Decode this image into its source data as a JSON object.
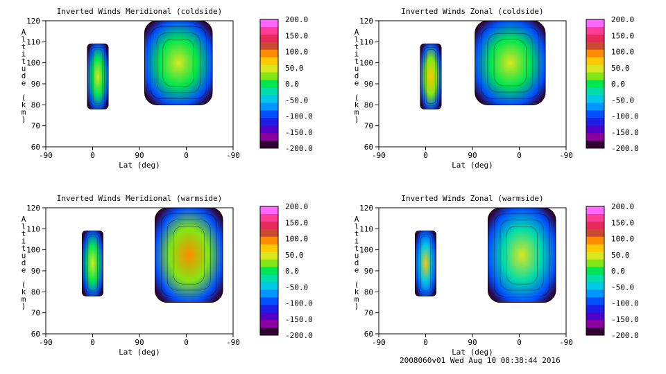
{
  "footer": "2008060v01 Wed Aug 10 08:38:44 2016",
  "colorbar": {
    "ticks": [
      "200.0",
      "150.0",
      "100.0",
      "50.0",
      "0.0",
      "-50.0",
      "-100.0",
      "-150.0",
      "-200.0"
    ],
    "colors": [
      "#ff66ff",
      "#ff3c96",
      "#e6285a",
      "#c84b32",
      "#ff8c00",
      "#ffc800",
      "#dce61e",
      "#82e614",
      "#00e650",
      "#00dcaa",
      "#00c8e6",
      "#0096ff",
      "#0050ff",
      "#1e1ee6",
      "#5000c8",
      "#8c00a0",
      "#320032"
    ]
  },
  "chart_data": [
    {
      "type": "heatmap",
      "panel": "top-left",
      "title": "Inverted Winds Meridional (coldside)",
      "xlabel": "Lat (deg)",
      "ylabel": "Altitude (km)",
      "xticks": [
        "-90",
        "0",
        "90",
        "0",
        "-90"
      ],
      "yticks": [
        "60",
        "70",
        "80",
        "90",
        "100",
        "110",
        "120"
      ],
      "ylim": [
        60,
        120
      ],
      "colorbar_range": [
        -200,
        200
      ],
      "regions": [
        {
          "lat_from": -10,
          "lat_to": 30,
          "alt_from": 78,
          "alt_to": 109,
          "dominant_value": 0,
          "min": -200,
          "max": 50
        },
        {
          "lat_from": 100,
          "lat_to": 230,
          "alt_from": 80,
          "alt_to": 120,
          "dominant_value": 0,
          "min": -200,
          "max": 50
        }
      ]
    },
    {
      "type": "heatmap",
      "panel": "top-right",
      "title": "Inverted Winds Zonal (coldside)",
      "xlabel": "Lat (deg)",
      "ylabel": "Altitude (km)",
      "xticks": [
        "-90",
        "0",
        "90",
        "0",
        "-90"
      ],
      "yticks": [
        "60",
        "70",
        "80",
        "90",
        "100",
        "110",
        "120"
      ],
      "ylim": [
        60,
        120
      ],
      "colorbar_range": [
        -200,
        200
      ],
      "regions": [
        {
          "lat_from": -10,
          "lat_to": 30,
          "alt_from": 78,
          "alt_to": 109,
          "dominant_value": 25,
          "min": -200,
          "max": 75
        },
        {
          "lat_from": 95,
          "lat_to": 230,
          "alt_from": 80,
          "alt_to": 120,
          "dominant_value": 0,
          "min": -200,
          "max": 50
        }
      ]
    },
    {
      "type": "heatmap",
      "panel": "bottom-left",
      "title": "Inverted Winds Meridional (warmside)",
      "xlabel": "Lat (deg)",
      "ylabel": "Altitude (km)",
      "xticks": [
        "-90",
        "0",
        "90",
        "0",
        "-90"
      ],
      "yticks": [
        "60",
        "70",
        "80",
        "90",
        "100",
        "110",
        "120"
      ],
      "ylim": [
        60,
        120
      ],
      "colorbar_range": [
        -200,
        200
      ],
      "regions": [
        {
          "lat_from": -20,
          "lat_to": 20,
          "alt_from": 78,
          "alt_to": 109,
          "dominant_value": 0,
          "min": -200,
          "max": 40
        },
        {
          "lat_from": 120,
          "lat_to": 250,
          "alt_from": 75,
          "alt_to": 120,
          "dominant_value": 25,
          "min": -200,
          "max": 100
        }
      ]
    },
    {
      "type": "heatmap",
      "panel": "bottom-right",
      "title": "Inverted Winds Zonal (warmside)",
      "xlabel": "Lat (deg)",
      "ylabel": "Altitude (km)",
      "xticks": [
        "-90",
        "0",
        "90",
        "0",
        "-90"
      ],
      "yticks": [
        "60",
        "70",
        "80",
        "90",
        "100",
        "110",
        "120"
      ],
      "ylim": [
        60,
        120
      ],
      "colorbar_range": [
        -200,
        200
      ],
      "regions": [
        {
          "lat_from": -20,
          "lat_to": 20,
          "alt_from": 78,
          "alt_to": 109,
          "dominant_value": -50,
          "min": -200,
          "max": 75
        },
        {
          "lat_from": 120,
          "lat_to": 250,
          "alt_from": 75,
          "alt_to": 120,
          "dominant_value": -25,
          "min": -200,
          "max": 50
        }
      ]
    }
  ]
}
